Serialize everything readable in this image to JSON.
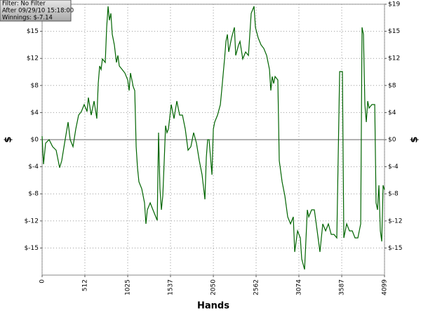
{
  "chart_data": {
    "type": "line",
    "info": [
      "Filter: No Filter",
      "After 09/29/10 15:18:00",
      "Winnings: $-7.14"
    ],
    "x_label": "Hands",
    "y_label": "$",
    "y2_label": "$",
    "xlim": [
      0,
      4099
    ],
    "xticks": [
      0,
      512,
      1025,
      1537,
      2050,
      2562,
      3074,
      3587,
      4099
    ],
    "ylim": [
      -19.3,
      19.3
    ],
    "yticks": [
      {
        "value": 19.3,
        "label": "$19"
      },
      {
        "value": 15.44,
        "label": "$15"
      },
      {
        "value": 11.58,
        "label": "$12"
      },
      {
        "value": 7.72,
        "label": "$8"
      },
      {
        "value": 3.86,
        "label": "$4"
      },
      {
        "value": 0,
        "label": "$0"
      },
      {
        "value": -3.86,
        "label": "$-4"
      },
      {
        "value": -7.72,
        "label": "$-8"
      },
      {
        "value": -11.58,
        "label": "$-12"
      },
      {
        "value": -15.44,
        "label": "$-15"
      }
    ],
    "grid": true,
    "x": [
      0,
      17,
      42,
      84,
      126,
      168,
      210,
      235,
      269,
      311,
      336,
      370,
      403,
      437,
      470,
      504,
      538,
      554,
      588,
      622,
      655,
      672,
      689,
      706,
      722,
      756,
      773,
      790,
      806,
      823,
      840,
      865,
      890,
      907,
      924,
      958,
      991,
      1025,
      1042,
      1058,
      1092,
      1109,
      1126,
      1142,
      1159,
      1193,
      1226,
      1243,
      1260,
      1294,
      1327,
      1378,
      1394,
      1411,
      1428,
      1445,
      1462,
      1478,
      1495,
      1512,
      1546,
      1579,
      1613,
      1646,
      1680,
      1714,
      1747,
      1781,
      1814,
      1848,
      1882,
      1915,
      1949,
      1966,
      1982,
      1999,
      2016,
      2033,
      2050,
      2066,
      2100,
      2134,
      2150,
      2184,
      2201,
      2218,
      2234,
      2268,
      2302,
      2318,
      2352,
      2369,
      2402,
      2436,
      2470,
      2503,
      2537,
      2554,
      2587,
      2621,
      2654,
      2688,
      2722,
      2738,
      2755,
      2772,
      2789,
      2822,
      2839,
      2873,
      2906,
      2940,
      2974,
      3007,
      3024,
      3058,
      3091,
      3108,
      3142,
      3175,
      3192,
      3226,
      3259,
      3293,
      3326,
      3360,
      3394,
      3427,
      3461,
      3494,
      3528,
      3562,
      3595,
      3612,
      3646,
      3679,
      3713,
      3746,
      3780,
      3814,
      3830,
      3847,
      3864,
      3881,
      3898,
      3914,
      3948,
      3982,
      3998,
      4015,
      4032,
      4049,
      4066,
      4082,
      4099
    ],
    "series": [
      {
        "name": "Winnings",
        "color": "#006400",
        "values": [
          0.5,
          -3.5,
          -0.5,
          0,
          -1,
          -1.5,
          -4,
          -3,
          -0.5,
          2.5,
          0,
          -1,
          1.5,
          3.5,
          4,
          5,
          4,
          6,
          3.5,
          5.5,
          3,
          8,
          10.5,
          10,
          11.5,
          11,
          16,
          19,
          17,
          18,
          15,
          13.5,
          11,
          12,
          10.5,
          10,
          9.5,
          8.5,
          7,
          9.5,
          7.5,
          7,
          -1,
          -4,
          -6,
          -7,
          -9,
          -12,
          -10,
          -9,
          -10,
          -11.5,
          1,
          -7,
          -10,
          -8,
          -3,
          2,
          1,
          1.5,
          5,
          3,
          5.5,
          3.5,
          3.5,
          1.5,
          -1.5,
          -1,
          1,
          -0.5,
          -3,
          -5,
          -8.5,
          -2.5,
          0,
          0,
          -2.5,
          -5,
          1.5,
          2.5,
          3.5,
          5,
          7,
          11.5,
          14,
          15,
          12.5,
          14.5,
          16,
          12,
          13.5,
          14,
          11.5,
          12.5,
          12,
          18,
          19,
          16,
          14.5,
          13.5,
          13,
          12,
          10,
          7,
          9,
          8,
          9,
          8.5,
          -3,
          -6,
          -8,
          -11,
          -12,
          -11,
          -16,
          -13,
          -14,
          -17,
          -18.5,
          -10,
          -11,
          -10,
          -10,
          -13,
          -16,
          -12,
          -13,
          -12,
          -13.5,
          -13.5,
          -14,
          9.7,
          9.7,
          -14,
          -12,
          -13,
          -13,
          -14,
          -14,
          -12,
          16,
          15,
          5,
          2.5,
          5.5,
          4.5,
          5,
          5,
          -9,
          -10,
          -6.5,
          -13,
          -14.5,
          -6.5,
          -7.14
        ]
      }
    ]
  }
}
